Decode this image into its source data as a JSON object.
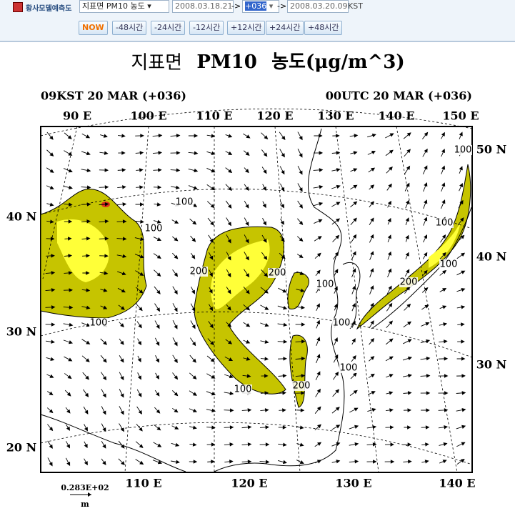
{
  "toolbar": {
    "app_label": "황사모델예측도",
    "field": "지표면 PM10 농도",
    "start_time": "2008.03.18.21",
    "arrow_1": "->",
    "forecast_hour": "+036",
    "arrow_2": "->",
    "end_time": "2008.03.20.09",
    "timezone": "KST",
    "buttons": [
      "NOW",
      "-48시간",
      "-24시간",
      "-12시간",
      "+12시간",
      "+24시간",
      "+48시간"
    ]
  },
  "map": {
    "title": {
      "part_1": "지표면",
      "part_2": "PM10",
      "part_3": "농도(μg/m^3)"
    },
    "left_header": "09KST 20 MAR (+036)",
    "right_header": "00UTC 20 MAR (+036)",
    "top_lon_labels": [
      "90 E",
      "100 E",
      "110 E",
      "120 E",
      "130 E",
      "140 E",
      "150 E"
    ],
    "bottom_lon_labels": [
      "110 E",
      "120 E",
      "130 E",
      "140 E"
    ],
    "left_lat_labels": [
      "40 N",
      "30 N",
      "20 N"
    ],
    "right_lat_labels": [
      "50 N",
      "40 N",
      "30 N"
    ],
    "contour_labels": [
      "100",
      "100",
      "100",
      "200",
      "200",
      "100",
      "100",
      "100",
      "200",
      "100",
      "200",
      "100",
      "100",
      "100"
    ],
    "reference_vector": "0.283E+02",
    "reference_unit": "m"
  }
}
